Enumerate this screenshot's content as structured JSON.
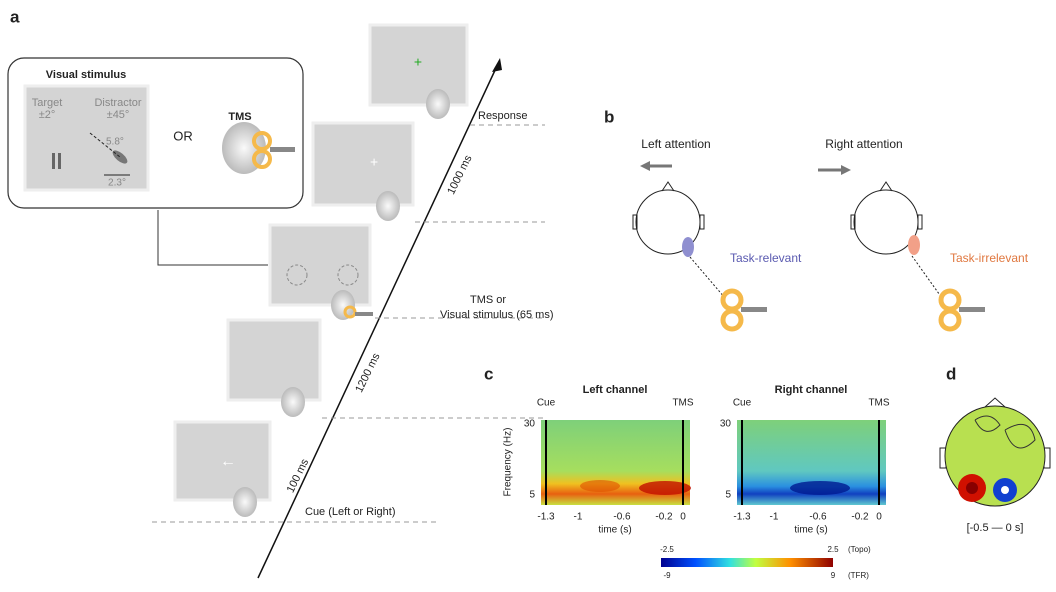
{
  "panel_a": {
    "label": "a",
    "stimulus_box": {
      "title": "Visual stimulus",
      "target": "Target",
      "target_size": "±2°",
      "distractor": "Distractor",
      "distractor_angle": "±45°",
      "distance": "5.8°",
      "width": "2.3°"
    },
    "or": "OR",
    "tms": "TMS",
    "events": {
      "response": "Response",
      "interval_long": "1000 ms",
      "tms_or": "TMS or",
      "visual_stimulus": "Visual stimulus (65 ms)",
      "interval_mid": "1200 ms",
      "interval_short": "100 ms",
      "cue": "Cue (Left or Right)"
    }
  },
  "panel_b": {
    "label": "b",
    "left": {
      "title": "Left attention",
      "site": "Task-relevant"
    },
    "right": {
      "title": "Right attention",
      "site": "Task-irrelevant"
    }
  },
  "panel_c": {
    "label": "c",
    "left_title": "Left channel",
    "right_title": "Right channel",
    "cue": "Cue",
    "tms": "TMS",
    "y_ticks": [
      "30",
      "5"
    ],
    "y_label": "Frequency (Hz)",
    "x_ticks": [
      "-1.3",
      "-1",
      "-0.6",
      "-0.2",
      "0"
    ],
    "x_label": "time (s)"
  },
  "colorbar": {
    "topo_min": "-2.5",
    "topo_max": "2.5",
    "topo_unit": "(Topo)",
    "tfr_min": "-9",
    "tfr_max": "9",
    "tfr_unit": "(TFR)"
  },
  "panel_d": {
    "label": "d",
    "window": "[-0.5 — 0 s]"
  }
}
